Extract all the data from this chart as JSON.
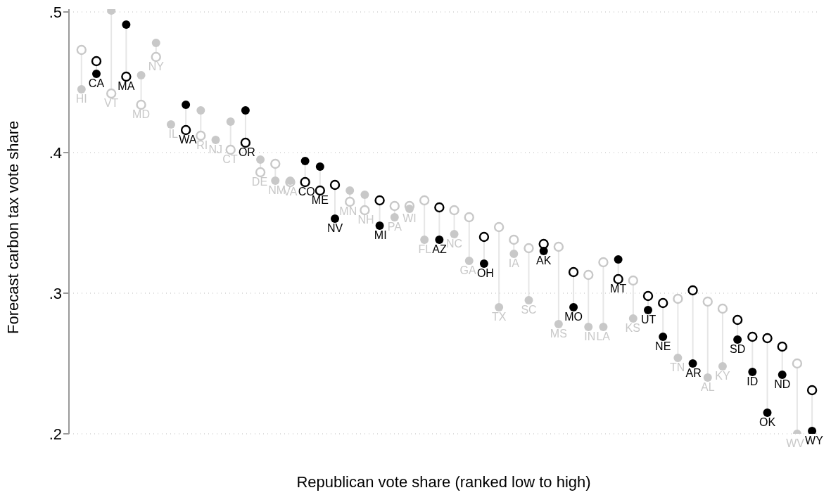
{
  "chart_data": {
    "type": "scatter",
    "xlabel": "Republican vote share (ranked low to high)",
    "ylabel": "Forecast carbon tax vote share",
    "categories": [
      "HI",
      "CA",
      "VT",
      "MA",
      "MD",
      "NY",
      "IL",
      "WA",
      "RI",
      "NJ",
      "CT",
      "OR",
      "DE",
      "NM",
      "VA",
      "CO",
      "ME",
      "NV",
      "MN",
      "NH",
      "MI",
      "PA",
      "WI",
      "FL",
      "AZ",
      "NC",
      "GA",
      "OH",
      "TX",
      "IA",
      "SC",
      "AK",
      "MS",
      "MO",
      "IN",
      "LA",
      "MT",
      "KS",
      "UT",
      "NE",
      "TN",
      "AR",
      "AL",
      "KY",
      "SD",
      "ID",
      "OK",
      "ND",
      "WV",
      "WY"
    ],
    "series": [
      {
        "colors": [
          "#c8c8c8",
          "#000000",
          "#c8c8c8",
          "#000000",
          "#c8c8c8",
          "#c8c8c8",
          "#c8c8c8",
          "#000000",
          "#c8c8c8",
          "#c8c8c8",
          "#c8c8c8",
          "#000000",
          "#c8c8c8",
          "#c8c8c8",
          "#c8c8c8",
          "#000000",
          "#000000",
          "#000000",
          "#c8c8c8",
          "#c8c8c8",
          "#000000",
          "#c8c8c8",
          "#c8c8c8",
          "#c8c8c8",
          "#000000",
          "#c8c8c8",
          "#c8c8c8",
          "#000000",
          "#c8c8c8",
          "#c8c8c8",
          "#c8c8c8",
          "#000000",
          "#c8c8c8",
          "#000000",
          "#c8c8c8",
          "#c8c8c8",
          "#000000",
          "#c8c8c8",
          "#000000",
          "#000000",
          "#c8c8c8",
          "#000000",
          "#c8c8c8",
          "#c8c8c8",
          "#000000",
          "#000000",
          "#000000",
          "#000000",
          "#c8c8c8",
          "#000000"
        ],
        "values": [
          0.445,
          0.456,
          0.501,
          0.491,
          0.455,
          0.478,
          0.42,
          0.434,
          0.43,
          0.409,
          0.422,
          0.43,
          0.395,
          0.38,
          0.38,
          0.394,
          0.39,
          0.353,
          0.373,
          0.37,
          0.348,
          0.354,
          0.36,
          0.338,
          0.338,
          0.342,
          0.323,
          0.321,
          0.29,
          0.328,
          0.295,
          0.33,
          0.278,
          0.29,
          0.276,
          0.276,
          0.324,
          0.282,
          0.288,
          0.269,
          0.254,
          0.25,
          0.24,
          0.248,
          0.267,
          0.244,
          0.215,
          0.242,
          0.2,
          0.202
        ]
      },
      {
        "colors": [
          "#c8c8c8",
          "#000000",
          "#c8c8c8",
          "#000000",
          "#c8c8c8",
          "#c8c8c8",
          null,
          "#000000",
          "#c8c8c8",
          null,
          "#c8c8c8",
          "#000000",
          "#c8c8c8",
          "#c8c8c8",
          "#c8c8c8",
          "#000000",
          "#000000",
          "#000000",
          "#c8c8c8",
          "#c8c8c8",
          "#000000",
          "#c8c8c8",
          "#c8c8c8",
          "#c8c8c8",
          "#000000",
          "#c8c8c8",
          "#c8c8c8",
          "#000000",
          "#c8c8c8",
          "#c8c8c8",
          "#c8c8c8",
          "#000000",
          "#c8c8c8",
          "#000000",
          "#c8c8c8",
          "#c8c8c8",
          "#000000",
          "#c8c8c8",
          "#000000",
          "#000000",
          "#c8c8c8",
          "#000000",
          "#c8c8c8",
          "#c8c8c8",
          "#000000",
          "#000000",
          "#000000",
          "#000000",
          "#c8c8c8",
          "#000000"
        ],
        "values": [
          0.473,
          0.465,
          0.442,
          0.454,
          0.434,
          0.468,
          null,
          0.416,
          0.412,
          null,
          0.402,
          0.407,
          0.386,
          0.392,
          0.379,
          0.379,
          0.373,
          0.377,
          0.365,
          0.359,
          0.366,
          0.362,
          0.362,
          0.366,
          0.361,
          0.359,
          0.354,
          0.34,
          0.347,
          0.338,
          0.332,
          0.335,
          0.333,
          0.315,
          0.313,
          0.322,
          0.31,
          0.309,
          0.298,
          0.293,
          0.296,
          0.302,
          0.294,
          0.289,
          0.281,
          0.269,
          0.268,
          0.262,
          0.25,
          0.231
        ]
      }
    ],
    "ylim": [
      0.2,
      0.502
    ],
    "yticks": [
      {
        "value": 0.2,
        "label": ".2"
      },
      {
        "value": 0.3,
        "label": ".3"
      },
      {
        "value": 0.4,
        "label": ".4"
      },
      {
        "value": 0.5,
        "label": ".5"
      }
    ],
    "grid": "y",
    "marker": "circle",
    "tick_labels": "y"
  }
}
